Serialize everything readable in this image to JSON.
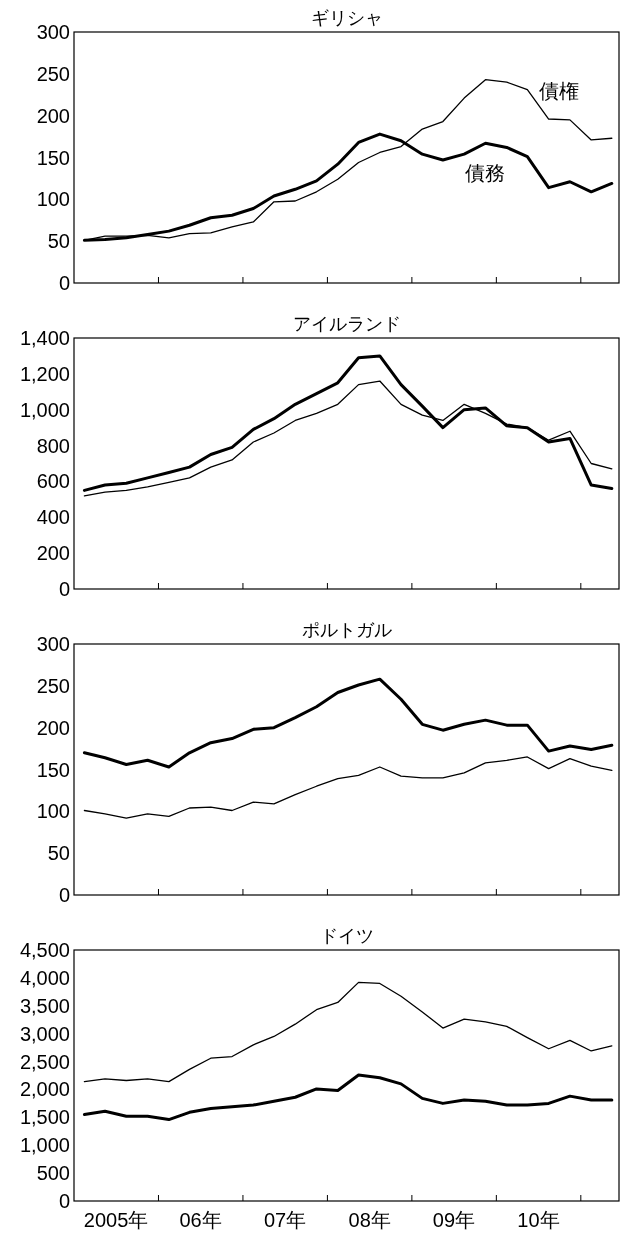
{
  "chart_data": [
    {
      "type": "line",
      "title": "ギリシャ",
      "x": [
        "2005-02-15",
        "2005-05-15",
        "2005-08-15",
        "2005-11-15",
        "2006-02-15",
        "2006-05-15",
        "2006-08-15",
        "2006-11-15",
        "2007-02-15",
        "2007-05-15",
        "2007-08-15",
        "2007-11-15",
        "2008-02-15",
        "2008-05-15",
        "2008-08-15",
        "2008-11-15",
        "2009-02-15",
        "2009-05-15",
        "2009-08-15",
        "2009-11-15",
        "2010-02-15",
        "2010-05-15",
        "2010-08-15",
        "2010-11-15",
        "2011-02-15",
        "2011-05-15"
      ],
      "xlim": [
        "2005-01-01",
        "2011-06-15"
      ],
      "xticks": [
        {
          "value": "2006-01-01",
          "label": null
        },
        {
          "value": "2007-01-01",
          "label": null
        },
        {
          "value": "2008-01-01",
          "label": null
        },
        {
          "value": "2009-01-01",
          "label": null
        },
        {
          "value": "2010-01-01",
          "label": null
        },
        {
          "value": "2011-01-01",
          "label": null
        }
      ],
      "ylim": [
        0,
        300
      ],
      "yticks": [
        0,
        50,
        100,
        150,
        200,
        250,
        300
      ],
      "tick_labels": "y",
      "marker": "none",
      "line_style": "solid",
      "series": [
        {
          "name": "債務",
          "color": "#000000",
          "values": [
            51,
            52,
            54,
            58,
            62,
            69,
            78,
            81,
            89,
            104,
            112,
            122,
            142,
            168,
            178,
            170,
            154,
            147,
            154,
            167,
            162,
            151,
            114,
            121,
            109,
            119
          ]
        },
        {
          "name": "債権",
          "color": "#000000",
          "values": [
            51,
            56,
            56,
            57,
            54,
            59,
            60,
            67,
            73,
            97,
            98,
            109,
            124,
            144,
            156,
            163,
            184,
            193,
            221,
            243,
            240,
            231,
            196,
            195,
            171,
            173
          ]
        }
      ]
    },
    {
      "type": "line",
      "title": "アイルランド",
      "x": [
        "2005-02-15",
        "2005-05-15",
        "2005-08-15",
        "2005-11-15",
        "2006-02-15",
        "2006-05-15",
        "2006-08-15",
        "2006-11-15",
        "2007-02-15",
        "2007-05-15",
        "2007-08-15",
        "2007-11-15",
        "2008-02-15",
        "2008-05-15",
        "2008-08-15",
        "2008-11-15",
        "2009-02-15",
        "2009-05-15",
        "2009-08-15",
        "2009-11-15",
        "2010-02-15",
        "2010-05-15",
        "2010-08-15",
        "2010-11-15",
        "2011-02-15",
        "2011-05-15"
      ],
      "xlim": [
        "2005-01-01",
        "2011-06-15"
      ],
      "xticks": [
        {
          "value": "2006-01-01",
          "label": null
        },
        {
          "value": "2007-01-01",
          "label": null
        },
        {
          "value": "2008-01-01",
          "label": null
        },
        {
          "value": "2009-01-01",
          "label": null
        },
        {
          "value": "2010-01-01",
          "label": null
        },
        {
          "value": "2011-01-01",
          "label": null
        }
      ],
      "ylim": [
        0,
        1400
      ],
      "yticks": [
        0,
        200,
        400,
        600,
        800,
        {
          "value": 1000,
          "label": "1,000"
        },
        {
          "value": 1200,
          "label": "1,200"
        },
        {
          "value": 1400,
          "label": "1,400"
        }
      ],
      "tick_labels": "y",
      "marker": "none",
      "line_style": "solid",
      "series": [
        {
          "color": "#000000",
          "values": [
            550,
            580,
            590,
            620,
            650,
            680,
            750,
            790,
            890,
            950,
            1030,
            1090,
            1150,
            1290,
            1300,
            1140,
            1020,
            900,
            1000,
            1010,
            910,
            900,
            820,
            840,
            580,
            560
          ]
        },
        {
          "color": "#000000",
          "values": [
            520,
            540,
            550,
            570,
            595,
            620,
            680,
            720,
            820,
            870,
            940,
            980,
            1030,
            1140,
            1160,
            1030,
            970,
            940,
            1030,
            980,
            920,
            900,
            830,
            880,
            700,
            670
          ]
        }
      ]
    },
    {
      "type": "line",
      "title": "ポルトガル",
      "x": [
        "2005-02-15",
        "2005-05-15",
        "2005-08-15",
        "2005-11-15",
        "2006-02-15",
        "2006-05-15",
        "2006-08-15",
        "2006-11-15",
        "2007-02-15",
        "2007-05-15",
        "2007-08-15",
        "2007-11-15",
        "2008-02-15",
        "2008-05-15",
        "2008-08-15",
        "2008-11-15",
        "2009-02-15",
        "2009-05-15",
        "2009-08-15",
        "2009-11-15",
        "2010-02-15",
        "2010-05-15",
        "2010-08-15",
        "2010-11-15",
        "2011-02-15",
        "2011-05-15"
      ],
      "xlim": [
        "2005-01-01",
        "2011-06-15"
      ],
      "xticks": [
        {
          "value": "2006-01-01",
          "label": null
        },
        {
          "value": "2007-01-01",
          "label": null
        },
        {
          "value": "2008-01-01",
          "label": null
        },
        {
          "value": "2009-01-01",
          "label": null
        },
        {
          "value": "2010-01-01",
          "label": null
        },
        {
          "value": "2011-01-01",
          "label": null
        }
      ],
      "ylim": [
        0,
        300
      ],
      "yticks": [
        0,
        50,
        100,
        150,
        200,
        250,
        300
      ],
      "tick_labels": "y",
      "marker": "none",
      "line_style": "solid",
      "series": [
        {
          "color": "#000000",
          "values": [
            170,
            164,
            156,
            161,
            153,
            170,
            182,
            187,
            198,
            200,
            212,
            225,
            242,
            251,
            258,
            234,
            204,
            197,
            204,
            209,
            203,
            203,
            172,
            178,
            174,
            179
          ]
        },
        {
          "color": "#000000",
          "values": [
            101,
            97,
            92,
            97,
            94,
            104,
            105,
            101,
            111,
            109,
            120,
            130,
            139,
            143,
            153,
            142,
            140,
            140,
            146,
            158,
            161,
            165,
            151,
            163,
            154,
            149
          ]
        }
      ]
    },
    {
      "type": "line",
      "title": "ドイツ",
      "x": [
        "2005-02-15",
        "2005-05-15",
        "2005-08-15",
        "2005-11-15",
        "2006-02-15",
        "2006-05-15",
        "2006-08-15",
        "2006-11-15",
        "2007-02-15",
        "2007-05-15",
        "2007-08-15",
        "2007-11-15",
        "2008-02-15",
        "2008-05-15",
        "2008-08-15",
        "2008-11-15",
        "2009-02-15",
        "2009-05-15",
        "2009-08-15",
        "2009-11-15",
        "2010-02-15",
        "2010-05-15",
        "2010-08-15",
        "2010-11-15",
        "2011-02-15",
        "2011-05-15"
      ],
      "xlim": [
        "2005-01-01",
        "2011-06-15"
      ],
      "xticks": [
        {
          "value": "2006-01-01",
          "label": null
        },
        {
          "value": "2007-01-01",
          "label": null
        },
        {
          "value": "2008-01-01",
          "label": null
        },
        {
          "value": "2009-01-01",
          "label": null
        },
        {
          "value": "2010-01-01",
          "label": null
        },
        {
          "value": "2011-01-01",
          "label": null
        },
        {
          "value": "2005-07-02",
          "label": "2005年"
        },
        {
          "value": "2006-07-02",
          "label": "06年"
        },
        {
          "value": "2007-07-02",
          "label": "07年"
        },
        {
          "value": "2008-07-02",
          "label": "08年"
        },
        {
          "value": "2009-07-02",
          "label": "09年"
        },
        {
          "value": "2010-07-02",
          "label": "10年"
        }
      ],
      "ylim": [
        0,
        4500
      ],
      "yticks": [
        0,
        500,
        {
          "value": 1000,
          "label": "1,000"
        },
        {
          "value": 1500,
          "label": "1,500"
        },
        {
          "value": 2000,
          "label": "2,000"
        },
        {
          "value": 2500,
          "label": "2,500"
        },
        {
          "value": 3000,
          "label": "3,000"
        },
        {
          "value": 3500,
          "label": "3,500"
        },
        {
          "value": 4000,
          "label": "4,000"
        },
        {
          "value": 4500,
          "label": "4,500"
        }
      ],
      "marker": "none",
      "line_style": "solid",
      "series": [
        {
          "color": "#000000",
          "values": [
            1550,
            1610,
            1520,
            1520,
            1460,
            1590,
            1660,
            1690,
            1720,
            1790,
            1860,
            2010,
            1980,
            2260,
            2210,
            2100,
            1840,
            1750,
            1810,
            1790,
            1720,
            1720,
            1750,
            1880,
            1810,
            1810
          ]
        },
        {
          "color": "#000000",
          "values": [
            2140,
            2190,
            2160,
            2190,
            2140,
            2360,
            2560,
            2590,
            2800,
            2950,
            3170,
            3430,
            3560,
            3920,
            3900,
            3670,
            3390,
            3100,
            3260,
            3210,
            3130,
            2930,
            2730,
            2880,
            2690,
            2780
          ]
        }
      ]
    }
  ]
}
